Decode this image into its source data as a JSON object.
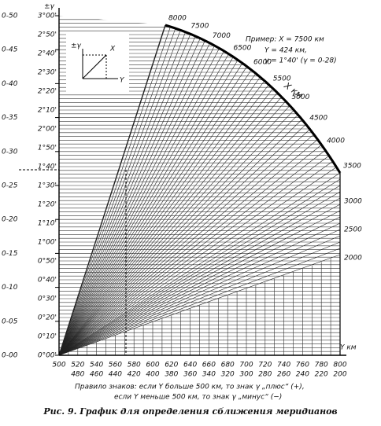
{
  "axis_left": {
    "label": "±γ",
    "thousandths": [
      "0-50",
      "0-45",
      "0-40",
      "0-35",
      "0-30",
      "0-25",
      "0-20",
      "0-15",
      "0-10",
      "0-05",
      "0-00"
    ],
    "degrees": [
      "3°00'",
      "2°50'",
      "2°40'",
      "2°30'",
      "2°20'",
      "2°10'",
      "2°00'",
      "1°50'",
      "1°40'",
      "1°30'",
      "1°20'",
      "1°10'",
      "1°00'",
      "0°50'",
      "0°40'",
      "0°30'",
      "0°20'",
      "0°10'",
      "0°00'"
    ]
  },
  "axis_bottom": {
    "label": "Y км",
    "top_row": [
      "500",
      "520",
      "540",
      "560",
      "580",
      "600",
      "620",
      "640",
      "660",
      "680",
      "700",
      "720",
      "740",
      "760",
      "780",
      "800"
    ],
    "bottom_row": [
      "480",
      "460",
      "440",
      "420",
      "400",
      "380",
      "360",
      "340",
      "320",
      "300",
      "280",
      "260",
      "240",
      "220",
      "200"
    ]
  },
  "x_scale": {
    "label": "X км",
    "arc": [
      "8000",
      "7500",
      "7000",
      "6500",
      "6000",
      "5500",
      "5000",
      "4500",
      "4000",
      "3500"
    ],
    "edge": [
      "3000",
      "2500",
      "2000"
    ]
  },
  "inset": {
    "gamma": "±γ",
    "x": "X",
    "y": "Y"
  },
  "example": [
    "Пример: X = 7500 км",
    "Y = 424 км,",
    "γ = 1°40' (γ = 0-28)"
  ],
  "rule": [
    "Правило знаков: если Y больше 500 км, то знак γ „плюс“ (+),",
    "если Y меньше 500 км, то знак γ „минус“ (−)"
  ],
  "caption": "Рис. 9. График для определения сближения меридианов"
}
